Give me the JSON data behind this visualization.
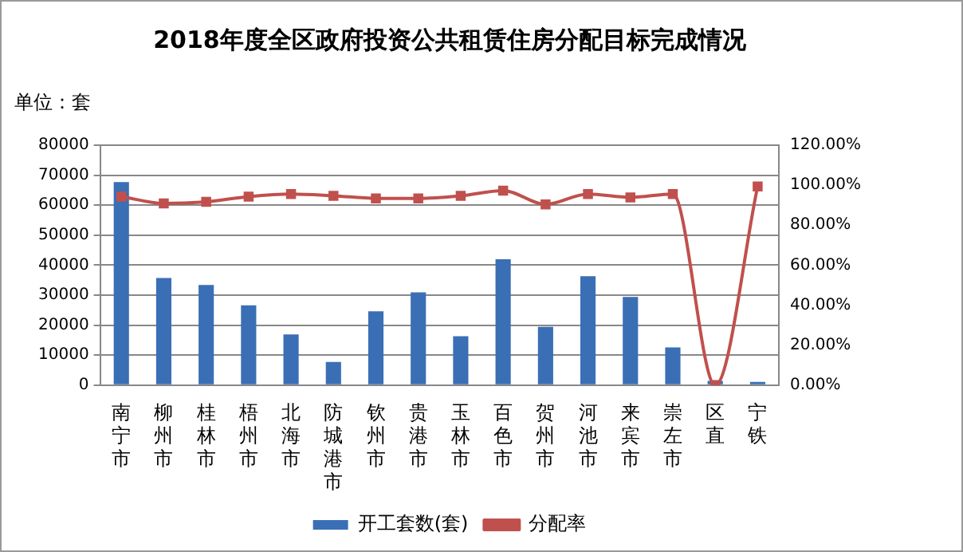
{
  "chart_data": {
    "type": "bar",
    "title": "2018年度全区政府投资公共租赁住房分配目标完成情况",
    "annotations": [
      "单位：套"
    ],
    "categories": [
      "南宁市",
      "柳州市",
      "桂林市",
      "梧州市",
      "北海市",
      "防城港市",
      "钦州市",
      "贵港市",
      "玉林市",
      "百色市",
      "贺州市",
      "河池市",
      "来宾市",
      "崇左市",
      "区直",
      "宁铁"
    ],
    "series": [
      {
        "name": "开工套数(套)",
        "color": "#3a6fb5",
        "values": [
          67700,
          35700,
          33400,
          26600,
          16900,
          7700,
          24600,
          30900,
          16300,
          42000,
          19400,
          36300,
          29400,
          12600,
          1400,
          1100
        ]
      },
      {
        "name": "分配率",
        "type": "line",
        "axis": "y2",
        "color": "#c0504d",
        "marker": "square",
        "line_style": "solid",
        "values": [
          94.3,
          90.9,
          91.7,
          94.3,
          95.6,
          94.7,
          93.4,
          93.4,
          94.7,
          97.3,
          90.4,
          95.6,
          93.9,
          95.6,
          0,
          99.4
        ]
      }
    ],
    "ylim": [
      0,
      80000
    ],
    "yticks": [
      0,
      10000,
      20000,
      30000,
      40000,
      50000,
      60000,
      70000,
      80000
    ],
    "y2lim": [
      0,
      120
    ],
    "y2ticks": [
      {
        "value": 0,
        "label": "0.00%"
      },
      {
        "value": 20,
        "label": "20.00%"
      },
      {
        "value": 40,
        "label": "40.00%"
      },
      {
        "value": 60,
        "label": "60.00%"
      },
      {
        "value": 80,
        "label": "80.00%"
      },
      {
        "value": 100,
        "label": "100.00%"
      },
      {
        "value": 120,
        "label": "120.00%"
      }
    ],
    "grid": "y",
    "legend": "bottom"
  }
}
